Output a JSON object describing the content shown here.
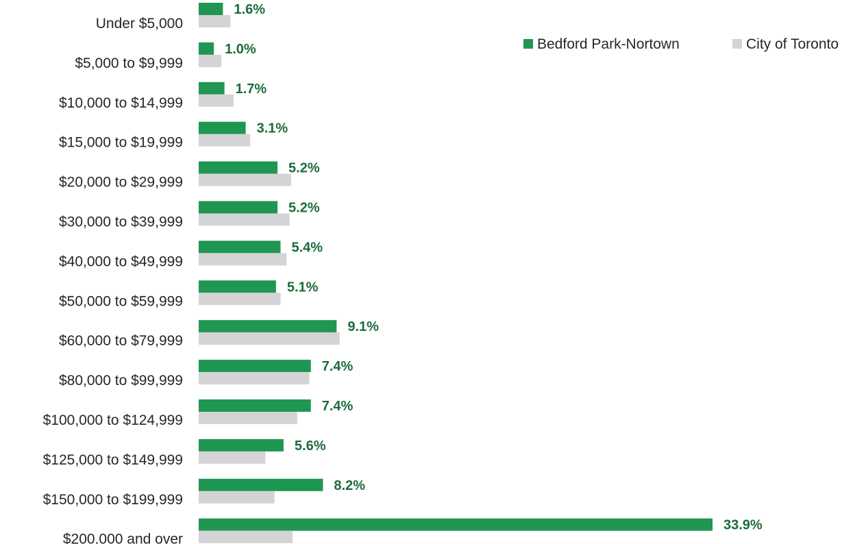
{
  "chart_data": {
    "type": "bar",
    "orientation": "horizontal",
    "categories": [
      "Under $5,000",
      "$5,000 to $9,999",
      "$10,000 to $14,999",
      "$15,000 to $19,999",
      "$20,000 to $29,999",
      "$30,000 to $39,999",
      "$40,000 to $49,999",
      "$50,000 to $59,999",
      "$60,000 to $79,999",
      "$80,000 to $99,999",
      "$100,000 to $124,999",
      "$125,000 to $149,999",
      "$150,000 to $199,999",
      "$200,000 and over"
    ],
    "series": [
      {
        "name": "Bedford Park-Nortown",
        "color": "#1f9652",
        "label_color": "#1d6b3c",
        "values": [
          1.6,
          1.0,
          1.7,
          3.1,
          5.2,
          5.2,
          5.4,
          5.1,
          9.1,
          7.4,
          7.4,
          5.6,
          8.2,
          33.9
        ],
        "labels": [
          "1.6%",
          "1.0%",
          "1.7%",
          "3.1%",
          "5.2%",
          "5.2%",
          "5.4%",
          "5.1%",
          "9.1%",
          "7.4%",
          "7.4%",
          "5.6%",
          "8.2%",
          "33.9%"
        ]
      },
      {
        "name": "City of Toronto",
        "color": "#d4d4d6",
        "values": [
          2.1,
          1.5,
          2.3,
          3.4,
          6.1,
          6.0,
          5.8,
          5.4,
          9.3,
          7.3,
          6.5,
          4.4,
          5.0,
          6.2
        ]
      }
    ],
    "xlim": [
      0,
      35
    ],
    "grid": false,
    "legend_position": "top-right",
    "title": "",
    "xlabel": "",
    "ylabel": ""
  }
}
